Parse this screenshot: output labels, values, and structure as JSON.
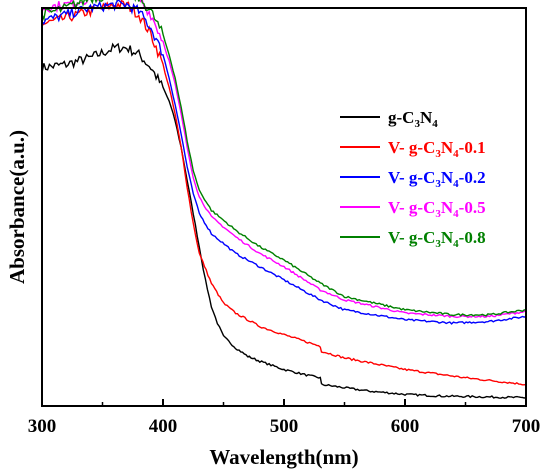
{
  "chart_data": {
    "type": "line",
    "xlabel": "Wavelength(nm)",
    "ylabel": "Absorbance(a.u.)",
    "xlim": [
      300,
      700
    ],
    "ylim": [
      0,
      1.2
    ],
    "xticks": [
      "300",
      "400",
      "500",
      "600",
      "700"
    ],
    "yticks_shown": false,
    "grid": false,
    "legend_position": "right",
    "series": [
      {
        "name": "g-C3N4",
        "legend_parts": [
          "g-C",
          "3",
          "N",
          "4",
          ""
        ],
        "color": "#000000",
        "x": [
          300,
          320,
          340,
          360,
          370,
          380,
          390,
          400,
          405,
          410,
          415,
          420,
          425,
          430,
          435,
          440,
          445,
          450,
          460,
          470,
          480,
          500,
          520,
          530,
          531,
          550,
          570,
          600,
          630,
          660,
          700
        ],
        "y": [
          1.02,
          1.03,
          1.05,
          1.08,
          1.08,
          1.06,
          1.02,
          0.96,
          0.92,
          0.86,
          0.78,
          0.68,
          0.58,
          0.48,
          0.38,
          0.3,
          0.25,
          0.21,
          0.175,
          0.15,
          0.135,
          0.11,
          0.092,
          0.085,
          0.065,
          0.055,
          0.045,
          0.035,
          0.03,
          0.028,
          0.025
        ]
      },
      {
        "name": "V- g-C3N4-0.1",
        "legend_parts": [
          "V- g-C",
          "3",
          "N",
          "4",
          "-0.1"
        ],
        "color": "#ff0000",
        "x": [
          300,
          320,
          340,
          360,
          370,
          380,
          390,
          400,
          405,
          410,
          415,
          420,
          425,
          430,
          440,
          450,
          460,
          480,
          500,
          530,
          531,
          550,
          600,
          650,
          700
        ],
        "y": [
          1.15,
          1.17,
          1.19,
          1.21,
          1.21,
          1.18,
          1.12,
          1.03,
          0.96,
          0.88,
          0.78,
          0.66,
          0.55,
          0.46,
          0.37,
          0.31,
          0.28,
          0.24,
          0.215,
          0.18,
          0.165,
          0.145,
          0.11,
          0.085,
          0.065
        ]
      },
      {
        "name": "V- g-C3N4-0.2",
        "legend_parts": [
          "V- g-C",
          "3",
          "N",
          "4",
          "-0.2"
        ],
        "color": "#0000ff",
        "x": [
          300,
          320,
          340,
          360,
          370,
          380,
          390,
          400,
          405,
          410,
          415,
          420,
          425,
          430,
          440,
          460,
          480,
          500,
          530,
          550,
          600,
          640,
          670,
          700
        ],
        "y": [
          1.16,
          1.18,
          1.2,
          1.21,
          1.21,
          1.19,
          1.14,
          1.06,
          0.99,
          0.91,
          0.82,
          0.72,
          0.64,
          0.58,
          0.52,
          0.46,
          0.42,
          0.38,
          0.32,
          0.29,
          0.26,
          0.25,
          0.255,
          0.27
        ]
      },
      {
        "name": "V- g-C3N4-0.5",
        "legend_parts": [
          "V- g-C",
          "3",
          "N",
          "4",
          "-0.5"
        ],
        "color": "#ff00ff",
        "x": [
          300,
          320,
          340,
          360,
          370,
          380,
          390,
          400,
          405,
          410,
          415,
          420,
          425,
          430,
          440,
          460,
          480,
          500,
          530,
          550,
          600,
          640,
          670,
          700
        ],
        "y": [
          1.2,
          1.21,
          1.23,
          1.25,
          1.25,
          1.23,
          1.18,
          1.1,
          1.04,
          0.97,
          0.88,
          0.78,
          0.69,
          0.63,
          0.57,
          0.51,
          0.46,
          0.42,
          0.35,
          0.32,
          0.28,
          0.27,
          0.27,
          0.285
        ]
      },
      {
        "name": "V- g-C3N4-0.8",
        "legend_parts": [
          "V- g-C",
          "3",
          "N",
          "4",
          "-0.8"
        ],
        "color": "#008000",
        "x": [
          300,
          320,
          340,
          360,
          370,
          380,
          390,
          400,
          405,
          410,
          415,
          420,
          425,
          430,
          440,
          460,
          480,
          500,
          530,
          550,
          600,
          640,
          670,
          700
        ],
        "y": [
          1.18,
          1.2,
          1.23,
          1.24,
          1.24,
          1.23,
          1.19,
          1.12,
          1.06,
          0.99,
          0.9,
          0.8,
          0.71,
          0.65,
          0.59,
          0.53,
          0.48,
          0.44,
          0.37,
          0.33,
          0.29,
          0.275,
          0.275,
          0.29
        ]
      }
    ]
  }
}
